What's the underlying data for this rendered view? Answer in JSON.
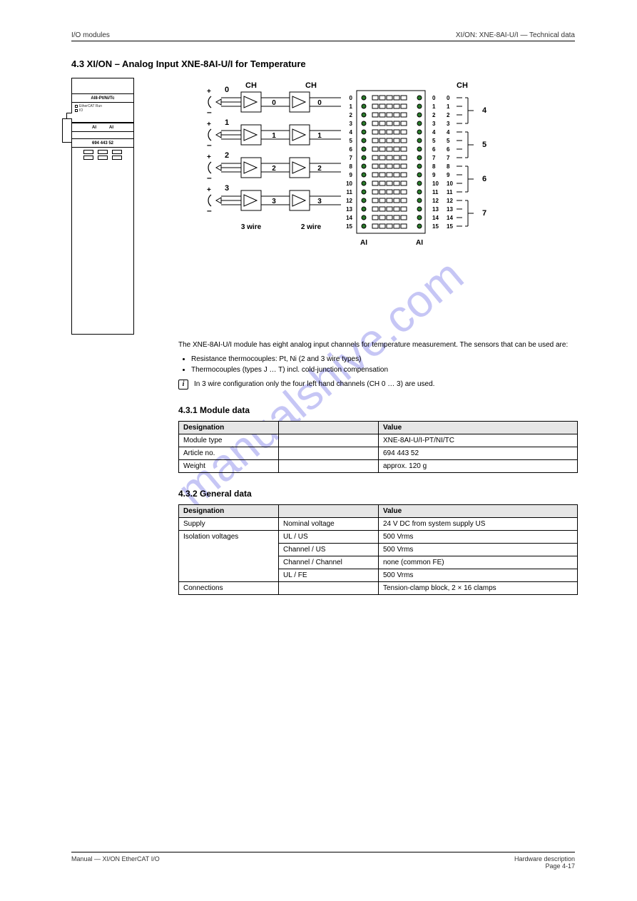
{
  "header": {
    "left": "I/O modules",
    "right": "XI/ON: XNE-8AI-U/I — Technical data"
  },
  "section_title": "4.3 XI/ON – Analog Input XNE-8AI-U/I for Temperature",
  "module": {
    "name_row": "AI8-Pt/Ni/Tc",
    "leds": [
      "EtherCAT Run",
      "IO"
    ],
    "ai_left": "AI",
    "ai_right": "AI",
    "part_number": "694 443 52"
  },
  "wiring": {
    "ch_label": "CH",
    "channels_left": [
      0,
      1,
      2,
      3
    ],
    "channels_right": [
      0,
      1,
      2,
      3
    ],
    "label_3wire": "3 wire",
    "label_2wire": "2 wire",
    "ai_left": "AI",
    "ai_right": "AI",
    "numbers": [
      "0",
      "1",
      "2",
      "3",
      "4",
      "5",
      "6",
      "7",
      "8",
      "9",
      "10",
      "11",
      "12",
      "13",
      "14",
      "15"
    ],
    "right_ch_values": [
      4,
      5,
      6,
      7
    ]
  },
  "body": {
    "intro": "The XNE-8AI-U/I module has eight analog input channels for temperature measurement. The sensors that can be used are:",
    "bullets": [
      "Resistance thermocouples: Pt, Ni (2 and 3 wire types)",
      "Thermocouples (types J … T) incl. cold-junction compensation"
    ],
    "note": "In 3 wire configuration only the four left hand channels (CH 0 … 3) are used."
  },
  "subsections": {
    "module_data": "4.3.1 Module data",
    "general_data": "4.3.2 General data"
  },
  "tables": {
    "module_data": {
      "header": [
        "Designation",
        "",
        "Value"
      ],
      "rows": [
        [
          "Module type",
          "",
          "XNE-8AI-U/I-PT/NI/TC"
        ],
        [
          "Article no.",
          "",
          "694 443 52"
        ],
        [
          "Weight",
          "",
          "approx. 120 g"
        ]
      ]
    },
    "general_data": {
      "header": [
        "Designation",
        "",
        "Value"
      ],
      "rows": [
        [
          "Supply",
          "Nominal voltage",
          "24 V DC from system supply US"
        ],
        [
          "Isolation voltages",
          "UL / US",
          "500 Vrms"
        ],
        [
          "",
          "Channel / US",
          "500 Vrms"
        ],
        [
          "",
          "Channel / Channel",
          "none (common FE)"
        ],
        [
          "",
          "UL / FE",
          "500 Vrms"
        ],
        [
          "Connections",
          "",
          "Tension-clamp block, 2 × 16 clamps"
        ]
      ],
      "merge_col1_rows": [
        2,
        3,
        4
      ]
    }
  },
  "footer": {
    "left": "Manual — XI/ON EtherCAT I/O",
    "right_top": "Hardware description",
    "right_bottom": "Page 4-17"
  },
  "watermark": "manualshive.com",
  "colors": {
    "watermark": "#9999ee",
    "header_bg": "#e6e6e6",
    "line": "#000000",
    "bg": "#ffffff"
  }
}
